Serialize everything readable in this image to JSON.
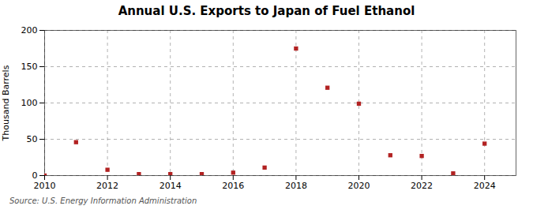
{
  "chart_data": {
    "type": "scatter",
    "title": "Annual U.S. Exports to Japan of Fuel Ethanol",
    "ylabel": "Thousand Barrels",
    "source": "Source: U.S. Energy Information Administration",
    "x": [
      2010,
      2011,
      2012,
      2013,
      2014,
      2015,
      2016,
      2017,
      2018,
      2019,
      2020,
      2021,
      2022,
      2023,
      2024
    ],
    "values": [
      0,
      46,
      8,
      2,
      2,
      2,
      4,
      11,
      175,
      121,
      99,
      28,
      27,
      3,
      44
    ],
    "color": "#b22222",
    "marker": "square",
    "xlim": [
      2010,
      2025
    ],
    "xticks": [
      2010,
      2012,
      2014,
      2016,
      2018,
      2020,
      2022,
      2024
    ],
    "ylim": [
      0,
      200
    ],
    "yticks": [
      0,
      50,
      100,
      150,
      200
    ],
    "grid": true
  }
}
